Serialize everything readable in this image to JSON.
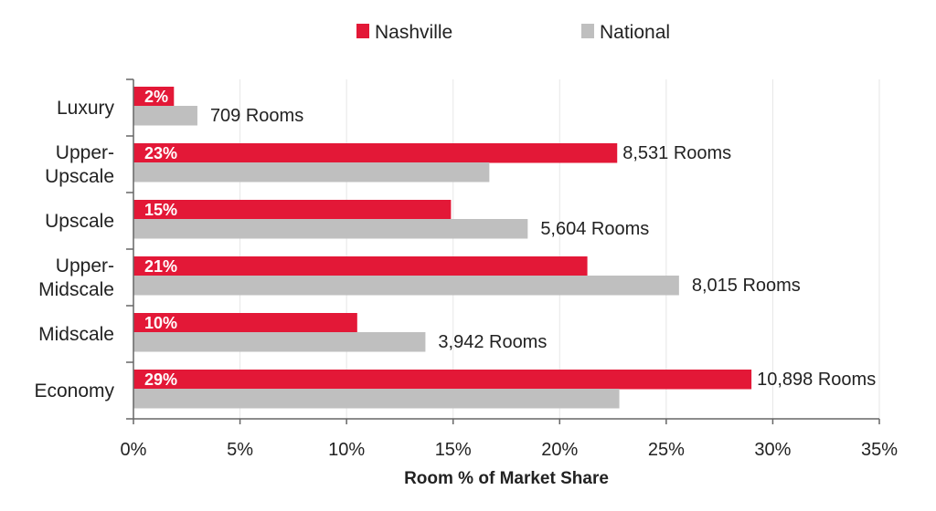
{
  "chart_data": {
    "type": "bar",
    "orientation": "horizontal",
    "title": "",
    "xlabel": "Room % of Market Share",
    "ylabel": "",
    "xlim": [
      0,
      35
    ],
    "x_ticks": [
      "0%",
      "5%",
      "10%",
      "15%",
      "20%",
      "25%",
      "30%",
      "35%"
    ],
    "grid": "vertical",
    "legend": "top-center",
    "categories": [
      [
        "Luxury"
      ],
      [
        "Upper-",
        "Upscale"
      ],
      [
        "Upscale"
      ],
      [
        "Upper-",
        "Midscale"
      ],
      [
        "Midscale"
      ],
      [
        "Economy"
      ]
    ],
    "series": [
      {
        "name": "Nashville",
        "color": "#e31837",
        "values": [
          1.9,
          22.7,
          14.9,
          21.3,
          10.5,
          29.0
        ],
        "labels": [
          "2%",
          "23%",
          "15%",
          "21%",
          "10%",
          "29%"
        ]
      },
      {
        "name": "National",
        "color": "#bfbfbf",
        "values": [
          3.0,
          16.7,
          18.5,
          25.6,
          13.7,
          22.8
        ]
      }
    ],
    "room_labels": [
      "709 Rooms",
      "8,531 Rooms",
      "5,604 Rooms",
      "8,015 Rooms",
      "3,942 Rooms",
      "10,898 Rooms"
    ]
  }
}
